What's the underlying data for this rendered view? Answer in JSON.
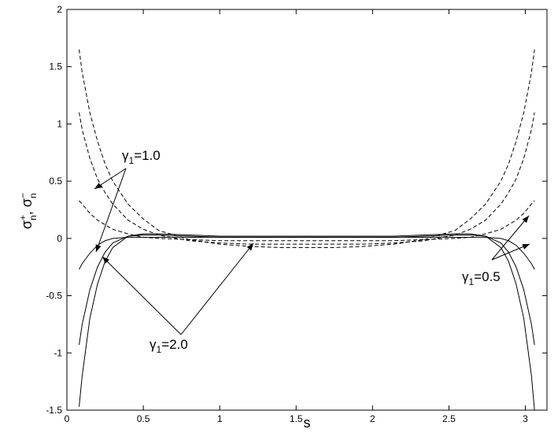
{
  "chart_data": {
    "type": "line",
    "xlabel": "s",
    "ylabel": [
      "σ",
      "+",
      "n",
      ", σ",
      "−",
      "n"
    ],
    "xlim": [
      0,
      3.1416
    ],
    "ylim": [
      -1.5,
      2
    ],
    "xticks": [
      0,
      0.5,
      1,
      1.5,
      2,
      2.5,
      3
    ],
    "yticks": [
      -1.5,
      -1,
      -0.5,
      0,
      0.5,
      1,
      1.5,
      2
    ],
    "x": [
      0.08,
      0.1,
      0.15,
      0.2,
      0.25,
      0.3,
      0.4,
      0.5,
      0.6,
      0.8,
      1.0,
      1.2,
      1.4,
      1.57,
      1.74,
      1.94,
      2.14,
      2.34,
      2.54,
      2.64,
      2.74,
      2.84,
      2.89,
      2.94,
      2.99,
      3.04,
      3.06
    ],
    "series": [
      {
        "color": "#000",
        "dashed": true,
        "values": [
          1.65,
          1.45,
          1.1,
          0.85,
          0.65,
          0.5,
          0.3,
          0.17,
          0.07,
          -0.01,
          -0.05,
          -0.07,
          -0.08,
          -0.08,
          -0.08,
          -0.07,
          -0.05,
          -0.01,
          0.07,
          0.17,
          0.3,
          0.5,
          0.65,
          0.85,
          1.1,
          1.45,
          1.65
        ]
      },
      {
        "color": "#000",
        "dashed": true,
        "values": [
          1.1,
          0.95,
          0.7,
          0.52,
          0.4,
          0.3,
          0.16,
          0.08,
          0.03,
          -0.02,
          -0.04,
          -0.05,
          -0.05,
          -0.05,
          -0.05,
          -0.05,
          -0.04,
          -0.02,
          0.03,
          0.08,
          0.16,
          0.3,
          0.4,
          0.52,
          0.7,
          0.95,
          1.1
        ]
      },
      {
        "color": "#000",
        "dashed": true,
        "values": [
          0.33,
          0.3,
          0.22,
          0.16,
          0.12,
          0.08,
          0.04,
          0.01,
          0,
          -0.01,
          -0.02,
          -0.02,
          -0.02,
          -0.02,
          -0.02,
          -0.02,
          -0.02,
          -0.01,
          0,
          0.01,
          0.04,
          0.08,
          0.12,
          0.16,
          0.22,
          0.3,
          0.33
        ]
      },
      {
        "color": "#000",
        "dashed": false,
        "values": [
          -1.47,
          -1.2,
          -0.7,
          -0.4,
          -0.2,
          -0.08,
          0.02,
          0.04,
          0.04,
          0.03,
          0.02,
          0.02,
          0.02,
          0.02,
          0.02,
          0.02,
          0.02,
          0.03,
          0.04,
          0.04,
          0.02,
          -0.08,
          -0.2,
          -0.4,
          -0.7,
          -1.2,
          -1.5
        ]
      },
      {
        "color": "#000",
        "dashed": false,
        "values": [
          -0.93,
          -0.75,
          -0.45,
          -0.25,
          -0.12,
          -0.04,
          0.02,
          0.03,
          0.03,
          0.02,
          0.01,
          0.01,
          0.01,
          0.01,
          0.01,
          0.01,
          0.01,
          0.02,
          0.03,
          0.03,
          0.02,
          -0.04,
          -0.12,
          -0.25,
          -0.45,
          -0.75,
          -0.93
        ]
      },
      {
        "color": "#000",
        "dashed": false,
        "values": [
          -0.27,
          -0.22,
          -0.13,
          -0.06,
          -0.02,
          0,
          0.01,
          0.01,
          0.01,
          0.01,
          0.01,
          0.01,
          0.01,
          0.01,
          0.01,
          0.01,
          0.01,
          0.01,
          0.01,
          0.01,
          0.01,
          0,
          -0.02,
          -0.06,
          -0.13,
          -0.22,
          -0.27
        ]
      }
    ],
    "annotations": [
      {
        "parts": [
          "γ",
          "1",
          "=1.0"
        ]
      },
      {
        "parts": [
          "γ",
          "1",
          "=2.0"
        ]
      },
      {
        "parts": [
          "γ",
          "1",
          "=0.5"
        ]
      }
    ]
  }
}
